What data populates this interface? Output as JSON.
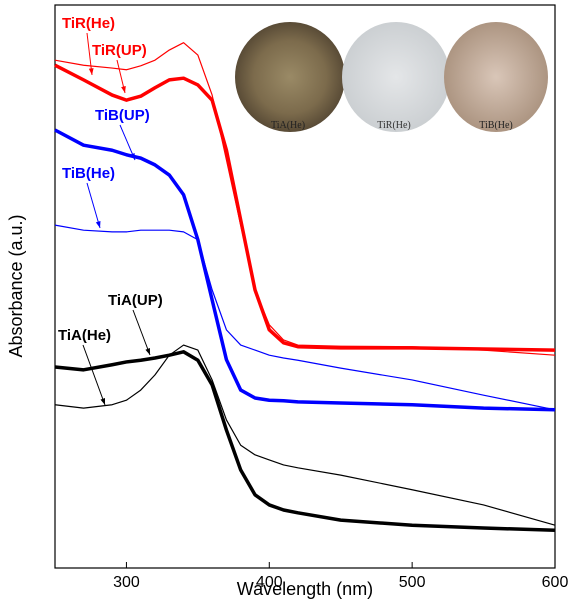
{
  "chart_data": {
    "type": "line",
    "xlabel": "Wavelength (nm)",
    "ylabel": "Absorbance (a.u.)",
    "xlim": [
      250,
      600
    ],
    "xticks": [
      300,
      400,
      500,
      600
    ],
    "ylim": [
      0,
      100
    ],
    "x": [
      250,
      270,
      290,
      300,
      310,
      320,
      330,
      340,
      350,
      360,
      370,
      380,
      390,
      400,
      410,
      420,
      450,
      500,
      550,
      600
    ],
    "series": [
      {
        "name": "TiR(He)",
        "color": "#ff0000",
        "width": 1.2,
        "values": [
          90.2,
          89.3,
          88.8,
          88.5,
          89.2,
          90.2,
          92.0,
          93.3,
          91.1,
          84.0,
          72.5,
          60.9,
          49.4,
          43.2,
          40.5,
          39.6,
          39.4,
          39.3,
          38.7,
          37.8
        ]
      },
      {
        "name": "TiR(UP)",
        "color": "#ff0000",
        "width": 3.5,
        "values": [
          89.3,
          86.7,
          84.0,
          83.1,
          83.8,
          85.3,
          86.7,
          87.0,
          85.8,
          83.1,
          74.2,
          61.8,
          49.4,
          42.3,
          40.0,
          39.3,
          39.1,
          39.1,
          38.9,
          38.7
        ]
      },
      {
        "name": "TiB(UP)",
        "color": "#0000ff",
        "width": 3.5,
        "values": [
          77.8,
          75.1,
          74.2,
          73.4,
          72.8,
          71.6,
          69.8,
          66.3,
          58.3,
          47.6,
          37.0,
          31.6,
          30.2,
          29.8,
          29.7,
          29.5,
          29.3,
          29.0,
          28.4,
          28.1
        ]
      },
      {
        "name": "TiB(He)",
        "color": "#0000ff",
        "width": 1.2,
        "values": [
          60.9,
          60.0,
          59.7,
          59.7,
          60.0,
          60.0,
          60.0,
          59.7,
          58.3,
          49.4,
          42.3,
          39.6,
          38.7,
          37.8,
          37.3,
          36.9,
          35.5,
          33.4,
          30.7,
          28.1
        ]
      },
      {
        "name": "TiA(UP)",
        "color": "#000000",
        "width": 3.5,
        "values": [
          35.7,
          35.2,
          36.1,
          36.6,
          36.9,
          37.3,
          37.8,
          38.4,
          36.9,
          32.5,
          24.5,
          17.4,
          13.0,
          11.2,
          10.3,
          9.8,
          8.5,
          7.6,
          7.1,
          6.7
        ]
      },
      {
        "name": "TiA(He)",
        "color": "#000000",
        "width": 1.2,
        "values": [
          29.0,
          28.4,
          29.0,
          29.8,
          31.6,
          34.3,
          37.8,
          39.6,
          38.7,
          33.4,
          26.3,
          21.8,
          20.1,
          19.2,
          18.3,
          17.8,
          16.5,
          13.9,
          11.2,
          7.6
        ]
      }
    ],
    "photo_labels": [
      "TiA(He)",
      "TiR(He)",
      "TiB(He)"
    ]
  }
}
